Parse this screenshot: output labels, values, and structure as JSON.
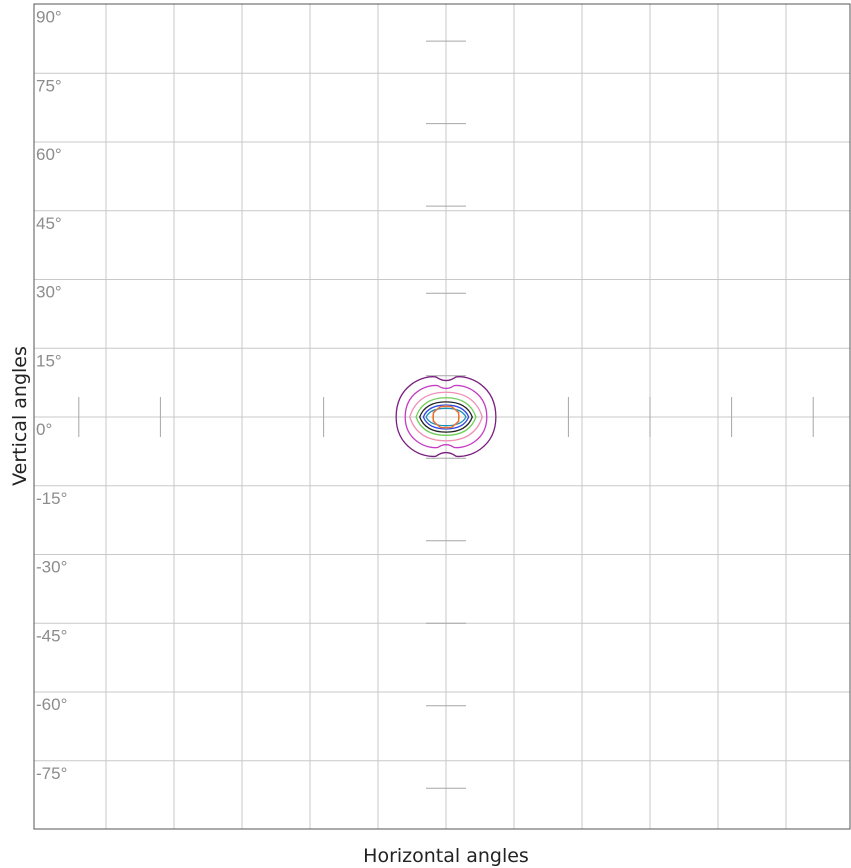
{
  "chart_data": {
    "type": "contour",
    "xlabel": "Horizontal angles",
    "ylabel": "Vertical angles",
    "xlim": [
      -90,
      90
    ],
    "ylim": [
      -90,
      90
    ],
    "grid": true,
    "x_grid_step": 15,
    "y_tick_labels": [
      "90°",
      "75°",
      "60°",
      "45°",
      "30°",
      "15°",
      "0°",
      "-15°",
      "-30°",
      "-45°",
      "-60°",
      "-75°"
    ],
    "y_tick_values": [
      90,
      75,
      60,
      45,
      30,
      15,
      0,
      -15,
      -30,
      -45,
      -60,
      -75
    ],
    "x_ticks_on_center_line": [
      -81,
      -63,
      -27,
      27,
      45,
      63,
      81
    ],
    "y_ticks_on_center_line": [
      82,
      64,
      46,
      27,
      9,
      -9,
      -27,
      -45,
      -63,
      -81
    ],
    "contours": [
      {
        "color": "#7a1f80",
        "hw": 11.0,
        "ht": 9.2,
        "hb": 9.0,
        "lobed": true
      },
      {
        "color": "#c43cc4",
        "hw": 9.0,
        "ht": 7.2,
        "hb": 7.0,
        "lobed": true
      },
      {
        "color": "#f090b8",
        "hw": 8.0,
        "ht": 5.4,
        "hb": 5.2,
        "lobed": false
      },
      {
        "color": "#6fce5a",
        "hw": 6.6,
        "ht": 4.2,
        "hb": 4.0,
        "lobed": false
      },
      {
        "color": "#222222",
        "hw": 5.8,
        "ht": 3.3,
        "hb": 3.3,
        "lobed": false
      },
      {
        "color": "#2e48e6",
        "hw": 5.0,
        "ht": 2.6,
        "hb": 2.6,
        "lobed": false
      },
      {
        "color": "#1a8fb8",
        "hw": 4.4,
        "ht": 1.9,
        "hb": 1.9,
        "lobed": false
      },
      {
        "color": "#f5c842",
        "hw": 3.0,
        "ht": 2.4,
        "hb": 2.4,
        "lobed": false,
        "filled": true,
        "fill": "#fff1c2"
      },
      {
        "color": "#e8683a",
        "hw": 2.8,
        "ht": 2.3,
        "hb": 2.3,
        "lobed": false,
        "octagon": true
      }
    ]
  }
}
